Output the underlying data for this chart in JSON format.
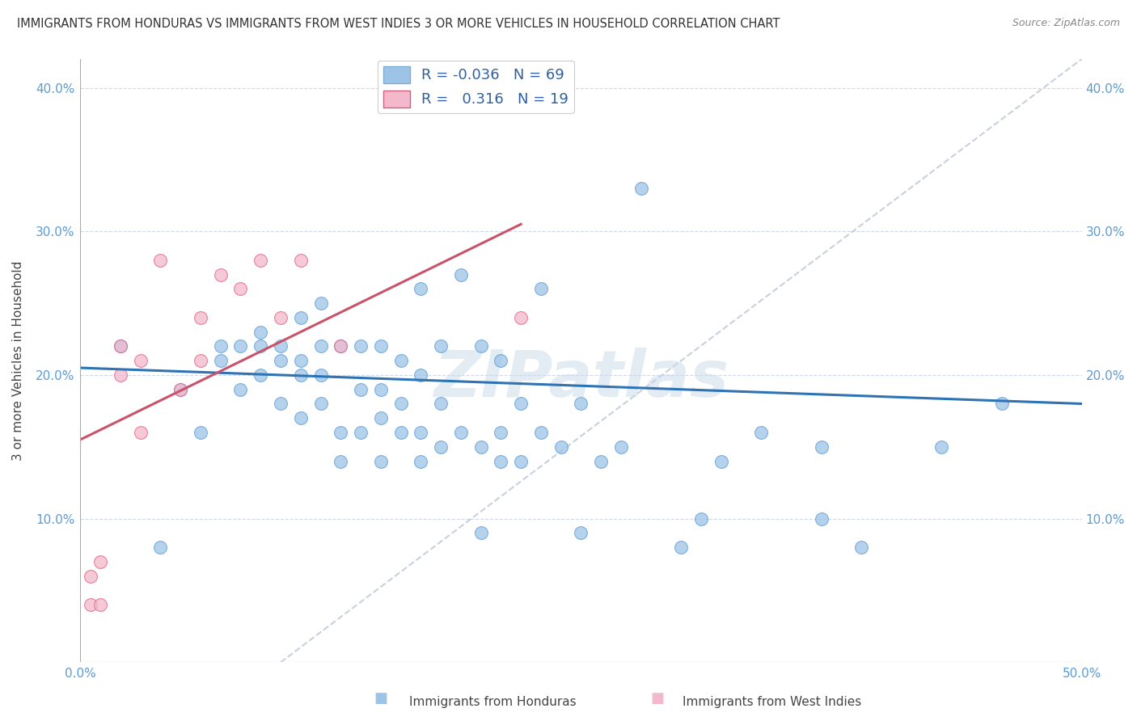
{
  "title": "IMMIGRANTS FROM HONDURAS VS IMMIGRANTS FROM WEST INDIES 3 OR MORE VEHICLES IN HOUSEHOLD CORRELATION CHART",
  "source": "Source: ZipAtlas.com",
  "ylabel": "3 or more Vehicles in Household",
  "xlim": [
    0,
    0.5
  ],
  "ylim": [
    0,
    0.42
  ],
  "ytick_vals": [
    0.1,
    0.2,
    0.3,
    0.4
  ],
  "blue_color": "#9dc3e6",
  "blue_edge_color": "#5b9bd5",
  "pink_color": "#f4b8cc",
  "pink_edge_color": "#e06080",
  "blue_line_color": "#2e74b5",
  "pink_line_color": "#c9536a",
  "dashed_color": "#c0c8d8",
  "watermark": "ZIPatlas",
  "legend1_label": "R = -0.036   N = 69",
  "legend2_label": "R =   0.316   N = 19",
  "legend_patch_blue": "#9dc3e6",
  "legend_patch_pink": "#f4b8cc",
  "blue_scatter_x": [
    0.02,
    0.04,
    0.05,
    0.06,
    0.07,
    0.07,
    0.08,
    0.08,
    0.09,
    0.09,
    0.09,
    0.1,
    0.1,
    0.1,
    0.11,
    0.11,
    0.11,
    0.11,
    0.12,
    0.12,
    0.12,
    0.12,
    0.13,
    0.13,
    0.13,
    0.14,
    0.14,
    0.14,
    0.15,
    0.15,
    0.15,
    0.15,
    0.16,
    0.16,
    0.16,
    0.17,
    0.17,
    0.17,
    0.17,
    0.18,
    0.18,
    0.18,
    0.19,
    0.19,
    0.2,
    0.2,
    0.2,
    0.21,
    0.21,
    0.21,
    0.22,
    0.22,
    0.23,
    0.23,
    0.24,
    0.25,
    0.25,
    0.26,
    0.27,
    0.28,
    0.3,
    0.31,
    0.32,
    0.34,
    0.37,
    0.37,
    0.39,
    0.43,
    0.46
  ],
  "blue_scatter_y": [
    0.22,
    0.08,
    0.19,
    0.16,
    0.21,
    0.22,
    0.19,
    0.22,
    0.2,
    0.22,
    0.23,
    0.18,
    0.21,
    0.22,
    0.17,
    0.2,
    0.21,
    0.24,
    0.18,
    0.2,
    0.22,
    0.25,
    0.14,
    0.16,
    0.22,
    0.16,
    0.19,
    0.22,
    0.14,
    0.17,
    0.19,
    0.22,
    0.16,
    0.18,
    0.21,
    0.14,
    0.16,
    0.2,
    0.26,
    0.15,
    0.18,
    0.22,
    0.16,
    0.27,
    0.09,
    0.15,
    0.22,
    0.14,
    0.16,
    0.21,
    0.14,
    0.18,
    0.16,
    0.26,
    0.15,
    0.09,
    0.18,
    0.14,
    0.15,
    0.33,
    0.08,
    0.1,
    0.14,
    0.16,
    0.1,
    0.15,
    0.08,
    0.15,
    0.18
  ],
  "pink_scatter_x": [
    0.005,
    0.005,
    0.01,
    0.01,
    0.02,
    0.02,
    0.03,
    0.03,
    0.04,
    0.05,
    0.06,
    0.06,
    0.07,
    0.08,
    0.09,
    0.1,
    0.11,
    0.13,
    0.22
  ],
  "pink_scatter_y": [
    0.04,
    0.06,
    0.04,
    0.07,
    0.2,
    0.22,
    0.16,
    0.21,
    0.28,
    0.19,
    0.21,
    0.24,
    0.27,
    0.26,
    0.28,
    0.24,
    0.28,
    0.22,
    0.24
  ],
  "blue_line_x": [
    0.0,
    0.5
  ],
  "blue_line_y": [
    0.205,
    0.18
  ],
  "pink_line_x": [
    0.0,
    0.22
  ],
  "pink_line_y": [
    0.155,
    0.305
  ]
}
